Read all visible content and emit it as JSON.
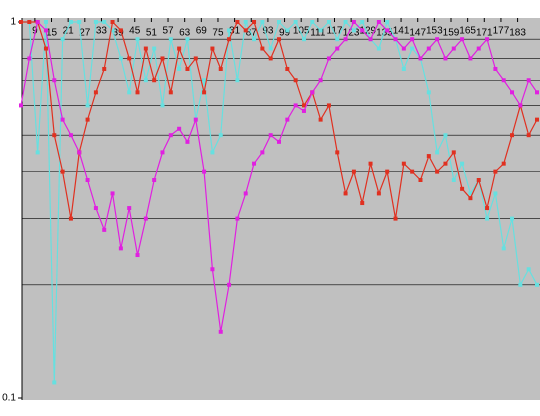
{
  "chart_data": {
    "type": "line",
    "log_y": true,
    "grid": true,
    "xlim": [
      4,
      190
    ],
    "ylim": [
      0.1,
      1
    ],
    "xticks": [
      9,
      15,
      21,
      27,
      33,
      39,
      45,
      51,
      57,
      63,
      69,
      75,
      81,
      87,
      93,
      99,
      105,
      111,
      117,
      123,
      129,
      135,
      141,
      147,
      153,
      159,
      165,
      171,
      177,
      183
    ],
    "yticks": [
      0.1,
      1
    ],
    "minor_yticks": [
      0.2,
      0.3,
      0.4,
      0.5,
      0.6,
      0.7,
      0.8,
      0.9
    ],
    "x": [
      4,
      7,
      10,
      13,
      16,
      19,
      22,
      25,
      28,
      31,
      34,
      37,
      40,
      43,
      46,
      49,
      52,
      55,
      58,
      61,
      64,
      67,
      70,
      73,
      76,
      79,
      82,
      85,
      88,
      91,
      94,
      97,
      100,
      103,
      106,
      109,
      112,
      115,
      118,
      121,
      124,
      127,
      130,
      133,
      136,
      139,
      142,
      145,
      148,
      151,
      154,
      157,
      160,
      163,
      166,
      169,
      172,
      175,
      178,
      181,
      184,
      187,
      190
    ],
    "series": [
      {
        "color": "#66e0e0",
        "values": [
          1,
          1,
          0.45,
          1,
          0.11,
          0.9,
          1,
          1,
          0.6,
          1,
          1,
          0.95,
          0.8,
          0.65,
          0.9,
          0.7,
          0.85,
          0.6,
          0.9,
          0.75,
          0.9,
          0.55,
          0.7,
          0.45,
          0.5,
          0.95,
          0.7,
          1,
          0.9,
          1,
          0.85,
          1,
          0.95,
          1,
          0.9,
          1,
          0.95,
          1,
          0.9,
          1,
          0.95,
          1,
          0.9,
          0.85,
          1,
          0.9,
          0.75,
          0.85,
          0.8,
          0.65,
          0.45,
          0.5,
          0.38,
          0.42,
          0.35,
          0.38,
          0.3,
          0.35,
          0.25,
          0.3,
          0.2,
          0.22,
          0.2
        ]
      },
      {
        "color": "#e03020",
        "values": [
          1,
          1,
          1,
          0.85,
          0.5,
          0.4,
          0.3,
          0.45,
          0.55,
          0.65,
          0.75,
          1,
          0.95,
          0.8,
          0.65,
          0.85,
          0.7,
          0.8,
          0.65,
          0.85,
          0.75,
          0.8,
          0.65,
          0.85,
          0.75,
          0.9,
          1,
          0.95,
          1,
          0.85,
          0.8,
          0.9,
          0.75,
          0.7,
          0.6,
          0.65,
          0.55,
          0.6,
          0.45,
          0.35,
          0.4,
          0.33,
          0.42,
          0.35,
          0.4,
          0.3,
          0.42,
          0.4,
          0.38,
          0.44,
          0.4,
          0.42,
          0.45,
          0.36,
          0.34,
          0.38,
          0.32,
          0.4,
          0.42,
          0.5,
          0.6,
          0.5,
          0.55
        ]
      },
      {
        "color": "#e020e0",
        "values": [
          0.6,
          0.8,
          1,
          0.95,
          0.7,
          0.55,
          0.5,
          0.45,
          0.38,
          0.32,
          0.28,
          0.35,
          0.25,
          0.32,
          0.24,
          0.3,
          0.38,
          0.45,
          0.5,
          0.52,
          0.48,
          0.55,
          0.4,
          0.22,
          0.15,
          0.2,
          0.3,
          0.35,
          0.42,
          0.45,
          0.5,
          0.48,
          0.55,
          0.6,
          0.58,
          0.65,
          0.7,
          0.8,
          0.85,
          0.9,
          1,
          0.95,
          0.9,
          1,
          0.95,
          0.9,
          0.85,
          0.9,
          0.8,
          0.85,
          0.9,
          0.8,
          0.85,
          0.9,
          0.8,
          0.85,
          0.9,
          0.75,
          0.7,
          0.65,
          0.6,
          0.7,
          0.65
        ]
      }
    ]
  }
}
